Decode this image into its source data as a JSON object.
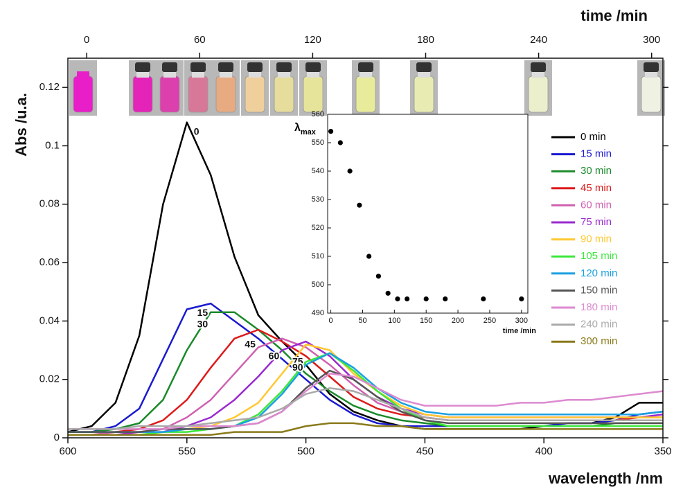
{
  "chart_data": [
    {
      "type": "line",
      "xlabel": "wavelength /nm",
      "ylabel": "Abs /u.a.",
      "x2label": "time /min",
      "xlim": [
        600,
        350
      ],
      "xticks": [
        600,
        550,
        500,
        450,
        400,
        350
      ],
      "ylim": [
        0,
        0.13
      ],
      "yticks": [
        0,
        0.02,
        0.04,
        0.06,
        0.08,
        0.1,
        0.12
      ],
      "x2lim": [
        -10,
        306
      ],
      "x2ticks": [
        0,
        60,
        120,
        180,
        240,
        300
      ],
      "legend": "right",
      "x": [
        600,
        590,
        580,
        570,
        560,
        550,
        540,
        530,
        520,
        510,
        500,
        490,
        480,
        470,
        460,
        450,
        440,
        430,
        420,
        410,
        400,
        390,
        380,
        370,
        360,
        350
      ],
      "series": [
        {
          "name": "0 min",
          "label": "0",
          "color": "#000000",
          "values": [
            0.002,
            0.004,
            0.012,
            0.035,
            0.08,
            0.108,
            0.09,
            0.062,
            0.042,
            0.033,
            0.025,
            0.015,
            0.009,
            0.006,
            0.004,
            0.003,
            0.003,
            0.003,
            0.003,
            0.003,
            0.004,
            0.005,
            0.005,
            0.007,
            0.012,
            0.012
          ]
        },
        {
          "name": "15 min",
          "label": "15",
          "color": "#1a1ad0",
          "values": [
            0.002,
            0.002,
            0.004,
            0.01,
            0.027,
            0.044,
            0.046,
            0.04,
            0.034,
            0.027,
            0.02,
            0.013,
            0.008,
            0.005,
            0.004,
            0.004,
            0.004,
            0.004,
            0.004,
            0.004,
            0.004,
            0.005,
            0.005,
            0.006,
            0.008,
            0.009
          ]
        },
        {
          "name": "30 min",
          "label": "30",
          "color": "#1a8a2a",
          "values": [
            0.002,
            0.002,
            0.003,
            0.005,
            0.013,
            0.03,
            0.043,
            0.043,
            0.037,
            0.03,
            0.022,
            0.016,
            0.011,
            0.008,
            0.006,
            0.005,
            0.004,
            0.004,
            0.004,
            0.004,
            0.004,
            0.004,
            0.004,
            0.005,
            0.005,
            0.005
          ]
        },
        {
          "name": "45 min",
          "label": "45",
          "color": "#dd1a1a",
          "values": [
            0.001,
            0.001,
            0.002,
            0.003,
            0.006,
            0.013,
            0.024,
            0.034,
            0.037,
            0.033,
            0.028,
            0.021,
            0.014,
            0.01,
            0.008,
            0.007,
            0.006,
            0.006,
            0.006,
            0.006,
            0.006,
            0.006,
            0.006,
            0.006,
            0.007,
            0.007
          ]
        },
        {
          "name": "60 min",
          "label": "60",
          "color": "#d060b0",
          "values": [
            0.001,
            0.001,
            0.002,
            0.002,
            0.003,
            0.007,
            0.013,
            0.022,
            0.031,
            0.034,
            0.031,
            0.025,
            0.018,
            0.012,
            0.009,
            0.007,
            0.006,
            0.006,
            0.006,
            0.006,
            0.006,
            0.006,
            0.006,
            0.006,
            0.006,
            0.006
          ]
        },
        {
          "name": "75 min",
          "label": "75",
          "color": "#9a2ad0",
          "values": [
            0.001,
            0.001,
            0.001,
            0.002,
            0.002,
            0.004,
            0.007,
            0.013,
            0.021,
            0.03,
            0.033,
            0.028,
            0.02,
            0.014,
            0.01,
            0.008,
            0.007,
            0.007,
            0.007,
            0.007,
            0.007,
            0.007,
            0.007,
            0.007,
            0.007,
            0.008
          ]
        },
        {
          "name": "90 min",
          "label": "90",
          "color": "#ffc830",
          "values": [
            0.001,
            0.001,
            0.001,
            0.001,
            0.002,
            0.003,
            0.004,
            0.007,
            0.012,
            0.022,
            0.032,
            0.03,
            0.022,
            0.016,
            0.011,
            0.008,
            0.007,
            0.007,
            0.007,
            0.007,
            0.007,
            0.007,
            0.007,
            0.007,
            0.007,
            0.007
          ]
        },
        {
          "name": "105 min",
          "color": "#3ce83c",
          "values": [
            0.001,
            0.001,
            0.001,
            0.001,
            0.002,
            0.002,
            0.003,
            0.004,
            0.008,
            0.016,
            0.026,
            0.029,
            0.023,
            0.016,
            0.01,
            0.006,
            0.004,
            0.004,
            0.004,
            0.004,
            0.004,
            0.004,
            0.004,
            0.004,
            0.004,
            0.004
          ]
        },
        {
          "name": "120 min",
          "color": "#1aa0e0",
          "values": [
            0.002,
            0.002,
            0.002,
            0.002,
            0.002,
            0.003,
            0.003,
            0.004,
            0.007,
            0.015,
            0.025,
            0.029,
            0.024,
            0.017,
            0.012,
            0.009,
            0.008,
            0.008,
            0.008,
            0.008,
            0.008,
            0.008,
            0.008,
            0.008,
            0.008,
            0.009
          ]
        },
        {
          "name": "150 min",
          "color": "#555555",
          "values": [
            0.002,
            0.002,
            0.002,
            0.002,
            0.003,
            0.003,
            0.003,
            0.004,
            0.005,
            0.009,
            0.017,
            0.023,
            0.02,
            0.014,
            0.009,
            0.006,
            0.005,
            0.005,
            0.005,
            0.005,
            0.005,
            0.005,
            0.005,
            0.005,
            0.005,
            0.005
          ]
        },
        {
          "name": "180 min",
          "color": "#dd8ad0",
          "values": [
            0.003,
            0.003,
            0.003,
            0.003,
            0.003,
            0.004,
            0.004,
            0.004,
            0.005,
            0.009,
            0.016,
            0.022,
            0.021,
            0.017,
            0.013,
            0.011,
            0.011,
            0.011,
            0.011,
            0.012,
            0.012,
            0.013,
            0.013,
            0.014,
            0.015,
            0.016
          ]
        },
        {
          "name": "240 min",
          "color": "#aaaaaa",
          "values": [
            0.003,
            0.003,
            0.003,
            0.004,
            0.004,
            0.004,
            0.005,
            0.006,
            0.007,
            0.01,
            0.015,
            0.017,
            0.016,
            0.013,
            0.01,
            0.007,
            0.006,
            0.006,
            0.006,
            0.006,
            0.006,
            0.006,
            0.006,
            0.006,
            0.006,
            0.006
          ]
        },
        {
          "name": "300 min",
          "color": "#8a7a1a",
          "values": [
            0.001,
            0.001,
            0.001,
            0.001,
            0.001,
            0.001,
            0.001,
            0.002,
            0.002,
            0.002,
            0.004,
            0.005,
            0.005,
            0.004,
            0.004,
            0.003,
            0.003,
            0.003,
            0.003,
            0.003,
            0.003,
            0.003,
            0.003,
            0.003,
            0.003,
            0.003
          ]
        }
      ]
    },
    {
      "type": "scatter",
      "ylabel": {
        "symbol": "λ",
        "subscript": "max"
      },
      "xlabel": "time /min",
      "xlim": [
        -5,
        310
      ],
      "xticks": [
        0,
        50,
        100,
        150,
        200,
        250,
        300
      ],
      "ylim": [
        490,
        560
      ],
      "yticks": [
        490,
        500,
        510,
        520,
        530,
        540,
        550,
        560
      ],
      "color": "#000000",
      "x": [
        0,
        15,
        30,
        45,
        60,
        75,
        90,
        105,
        120,
        150,
        180,
        240,
        300
      ],
      "values": [
        554,
        550,
        540,
        528,
        510,
        503,
        497,
        495,
        495,
        495,
        495,
        495,
        495
      ]
    }
  ]
}
